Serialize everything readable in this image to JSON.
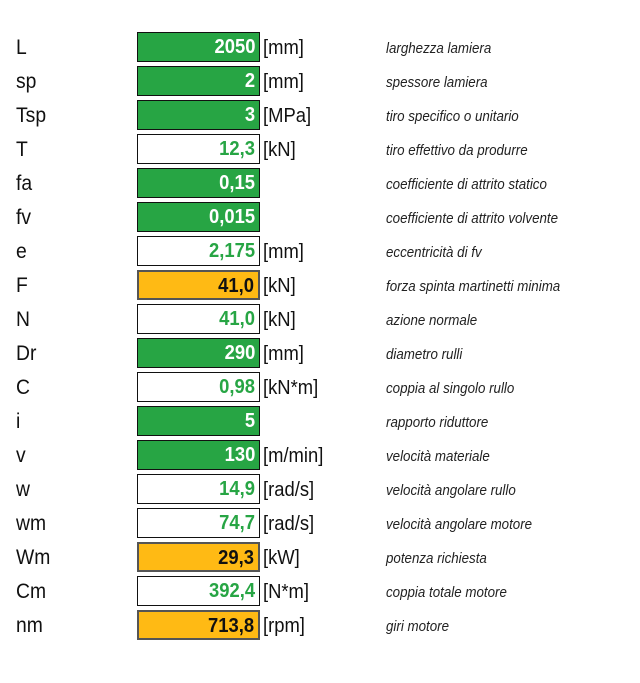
{
  "rows": [
    {
      "sym": "L",
      "val": "2050",
      "unit": "[mm]",
      "desc": "larghezza lamiera",
      "style": "green"
    },
    {
      "sym": "sp",
      "val": "2",
      "unit": "[mm]",
      "desc": "spessore lamiera",
      "style": "green"
    },
    {
      "sym": "Tsp",
      "val": "3",
      "unit": "[MPa]",
      "desc": "tiro specifico o unitario",
      "style": "green"
    },
    {
      "sym": "T",
      "val": "12,3",
      "unit": "[kN]",
      "desc": "tiro effettivo da produrre",
      "style": "white"
    },
    {
      "sym": "fa",
      "val": "0,15",
      "unit": "",
      "desc": "coefficiente di attrito statico",
      "style": "green"
    },
    {
      "sym": "fv",
      "val": "0,015",
      "unit": "",
      "desc": "coefficiente di attrito volvente",
      "style": "green"
    },
    {
      "sym": "e",
      "val": "2,175",
      "unit": "[mm]",
      "desc": "eccentricità di fv",
      "style": "white"
    },
    {
      "sym": "F",
      "val": "41,0",
      "unit": "[kN]",
      "desc": "forza spinta martinetti minima",
      "style": "orange"
    },
    {
      "sym": "N",
      "val": "41,0",
      "unit": "[kN]",
      "desc": "azione normale",
      "style": "white"
    },
    {
      "sym": "Dr",
      "val": "290",
      "unit": "[mm]",
      "desc": "diametro rulli",
      "style": "green"
    },
    {
      "sym": "C",
      "val": "0,98",
      "unit": "[kN*m]",
      "desc": "coppia al singolo rullo",
      "style": "white"
    },
    {
      "sym": "i",
      "val": "5",
      "unit": "",
      "desc": "rapporto riduttore",
      "style": "green"
    },
    {
      "sym": "v",
      "val": "130",
      "unit": "[m/min]",
      "desc": "velocità materiale",
      "style": "green"
    },
    {
      "sym": "w",
      "val": "14,9",
      "unit": "[rad/s]",
      "desc": "velocità angolare rullo",
      "style": "white"
    },
    {
      "sym": "wm",
      "val": "74,7",
      "unit": "[rad/s]",
      "desc": "velocità angolare motore",
      "style": "white"
    },
    {
      "sym": "Wm",
      "val": "29,3",
      "unit": "[kW]",
      "desc": "potenza richiesta",
      "style": "orange"
    },
    {
      "sym": "Cm",
      "val": "392,4",
      "unit": "[N*m]",
      "desc": "coppia totale motore",
      "style": "white"
    },
    {
      "sym": "nm",
      "val": "713,8",
      "unit": "[rpm]",
      "desc": "giri motore",
      "style": "orange"
    }
  ],
  "colors": {
    "input": "#27a544",
    "output": "#ffba14",
    "computed_text": "#27a544"
  }
}
